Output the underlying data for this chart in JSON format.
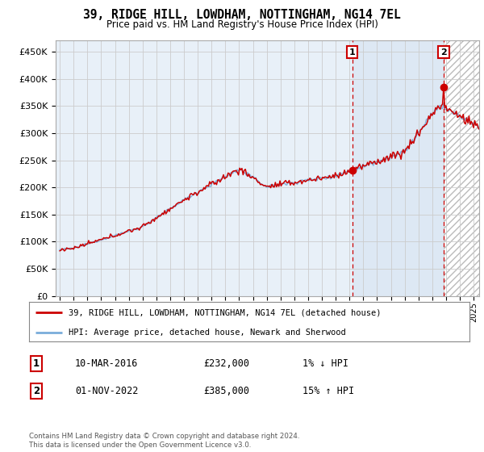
{
  "title": "39, RIDGE HILL, LOWDHAM, NOTTINGHAM, NG14 7EL",
  "subtitle": "Price paid vs. HM Land Registry's House Price Index (HPI)",
  "yticks": [
    0,
    50000,
    100000,
    150000,
    200000,
    250000,
    300000,
    350000,
    400000,
    450000
  ],
  "ytick_labels": [
    "£0",
    "£50K",
    "£100K",
    "£150K",
    "£200K",
    "£250K",
    "£300K",
    "£350K",
    "£400K",
    "£450K"
  ],
  "xlim_start": 1994.7,
  "xlim_end": 2025.4,
  "ylim_min": 0,
  "ylim_max": 470000,
  "hpi_color": "#7aadda",
  "price_color": "#cc0000",
  "marker_color": "#cc0000",
  "background_color": "#ffffff",
  "plot_bg_color": "#e8f0f8",
  "grid_color": "#cccccc",
  "sale1_x": 2016.19,
  "sale1_y": 232000,
  "sale2_x": 2022.83,
  "sale2_y": 385000,
  "sale1_label": "1",
  "sale2_label": "2",
  "shade_between_color": "#dde8f4",
  "shade_after_color": "#f0f0f0",
  "legend_line1": "39, RIDGE HILL, LOWDHAM, NOTTINGHAM, NG14 7EL (detached house)",
  "legend_line2": "HPI: Average price, detached house, Newark and Sherwood",
  "table_row1_num": "1",
  "table_row1_date": "10-MAR-2016",
  "table_row1_price": "£232,000",
  "table_row1_hpi": "1% ↓ HPI",
  "table_row2_num": "2",
  "table_row2_date": "01-NOV-2022",
  "table_row2_price": "£385,000",
  "table_row2_hpi": "15% ↑ HPI",
  "footer": "Contains HM Land Registry data © Crown copyright and database right 2024.\nThis data is licensed under the Open Government Licence v3.0.",
  "dashed_line_color": "#cc0000",
  "hatch_region_start": 2022.83,
  "hatch_region_end": 2025.4
}
